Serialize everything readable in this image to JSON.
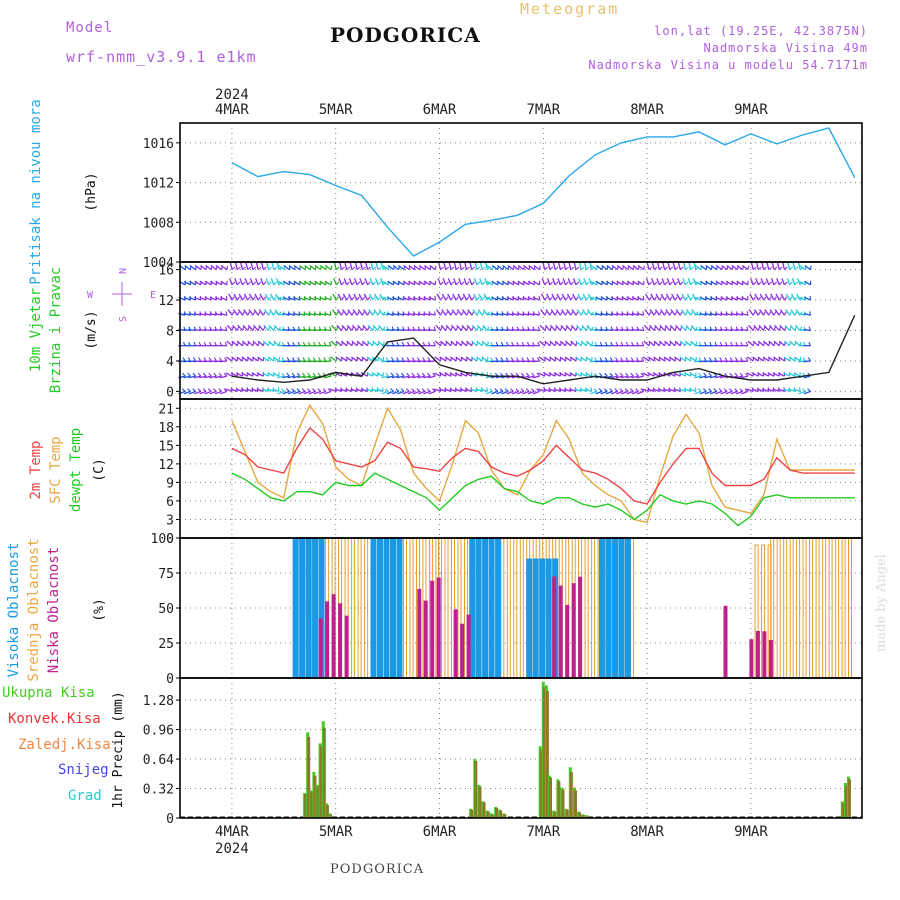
{
  "header": {
    "model_label": "Model",
    "model_name": "wrf-nmm_v3.9.1  e1km",
    "title": "PODGORICA",
    "subtitle": "Meteogram",
    "location": "lon,lat (19.25E, 42.3875N)",
    "altitude": "Nadmorska Visina 49m",
    "model_altitude": "Nadmorska Visina u modelu 54.7171m"
  },
  "footer": {
    "title": "PODGORICA",
    "credit": "made by Angel"
  },
  "colors": {
    "pressure": "#2aa8e8",
    "temp2m": "#ee4444",
    "sfc": "#e8a840",
    "dewpt": "#22cc22",
    "cloud_high": "#1a9ae6",
    "cloud_mid": "#e0a030",
    "cloud_low": "#c0208c",
    "precip_total": "#44cc22",
    "precip_conv": "#ee3333",
    "precip_frz": "#ee8844",
    "snow": "#4444ee",
    "grad": "#22cccc",
    "wind_speed": "#222222",
    "grid": "#888888"
  },
  "chart_data": [
    {
      "type": "line",
      "panel": "pressure",
      "ylabel_lines": [
        "Pritisak na nivou mora"
      ],
      "unit": "(hPa)",
      "yticks": [
        1004,
        1008,
        1012,
        1016
      ],
      "ylim": [
        1004,
        1018
      ],
      "top_axis": {
        "year": "2024",
        "days": [
          "4MAR",
          "5MAR",
          "6MAR",
          "7MAR",
          "8MAR",
          "9MAR"
        ]
      },
      "x_days": [
        0,
        0.25,
        0.5,
        0.75,
        1.0,
        1.25,
        1.5,
        1.75,
        2.0,
        2.25,
        2.5,
        2.75,
        3.0,
        3.25,
        3.5,
        3.75,
        4.0,
        4.25,
        4.5,
        4.75,
        5.0,
        5.25,
        5.5,
        5.75,
        6.0
      ],
      "series": [
        {
          "values": [
            1014.0,
            1012.6,
            1013.1,
            1012.8,
            1011.7,
            1010.7,
            1007.5,
            1004.6,
            1006.0,
            1007.8,
            1008.2,
            1008.7,
            1009.9,
            1012.7,
            1014.8,
            1016.0,
            1016.6,
            1016.6,
            1017.1,
            1015.8,
            1016.9,
            1015.9,
            1016.8,
            1017.5,
            1012.5
          ]
        }
      ],
      "grid": true
    },
    {
      "type": "line",
      "panel": "wind",
      "ylabel_lines": [
        "10m Vjetar",
        "Brzina i Pravac"
      ],
      "unit": "(m/s)",
      "yticks": [
        0,
        4,
        8,
        12,
        16
      ],
      "ylim": [
        -1,
        17
      ],
      "compass": {
        "n": "N",
        "s": "S",
        "e": "E",
        "w": "W"
      },
      "x_days": [
        0,
        0.25,
        0.5,
        0.75,
        1.0,
        1.25,
        1.5,
        1.75,
        2.0,
        2.25,
        2.5,
        2.75,
        3.0,
        3.25,
        3.5,
        3.75,
        4.0,
        4.25,
        4.5,
        4.75,
        5.0,
        5.25,
        5.5,
        5.75,
        6.0
      ],
      "series": [
        {
          "name": "speed",
          "values": [
            2.0,
            1.5,
            1.2,
            1.5,
            2.5,
            2.0,
            6.5,
            7.0,
            3.5,
            2.5,
            2.0,
            2.0,
            1.0,
            1.5,
            2.0,
            1.5,
            1.5,
            2.5,
            3.0,
            2.0,
            1.5,
            1.5,
            2.0,
            2.5,
            10.0
          ]
        }
      ],
      "barb_colors": [
        "#8a2be2",
        "#1e4fd8",
        "#22c8d8",
        "#22aa22",
        "#ee4444"
      ],
      "grid": true
    },
    {
      "type": "line",
      "panel": "temperature",
      "ylabel_lines": [
        "2m Temp",
        "SFC Temp",
        "dewpt Temp"
      ],
      "unit": "(C)",
      "yticks": [
        0,
        3,
        6,
        9,
        12,
        15,
        18,
        21
      ],
      "ylim": [
        0,
        22.5
      ],
      "x_days": [
        0,
        0.125,
        0.25,
        0.375,
        0.5,
        0.625,
        0.75,
        0.875,
        1.0,
        1.125,
        1.25,
        1.375,
        1.5,
        1.625,
        1.75,
        1.875,
        2.0,
        2.125,
        2.25,
        2.375,
        2.5,
        2.625,
        2.75,
        2.875,
        3.0,
        3.125,
        3.25,
        3.375,
        3.5,
        3.625,
        3.75,
        3.875,
        4.0,
        4.125,
        4.25,
        4.375,
        4.5,
        4.625,
        4.75,
        4.875,
        5.0,
        5.125,
        5.25,
        5.375,
        5.5,
        5.625,
        5.75,
        5.875,
        6.0
      ],
      "series": [
        {
          "name": "2m Temp",
          "values": [
            14.5,
            13.5,
            11.5,
            11.0,
            10.5,
            14.5,
            17.8,
            16.0,
            12.5,
            12.0,
            11.5,
            12.5,
            15.5,
            14.5,
            11.5,
            11.2,
            10.8,
            13.0,
            14.5,
            14.0,
            11.5,
            10.5,
            10.0,
            11.0,
            12.5,
            15.0,
            13.0,
            11.0,
            10.5,
            9.5,
            8.0,
            6.0,
            5.5,
            9.0,
            12.0,
            14.5,
            14.5,
            10.5,
            8.5,
            8.5,
            8.5,
            9.5,
            13.0,
            11.0,
            10.5,
            10.5,
            10.5,
            10.5,
            10.5
          ]
        },
        {
          "name": "SFC Temp",
          "values": [
            19.0,
            14.0,
            9.0,
            7.5,
            6.5,
            17.0,
            21.5,
            18.5,
            11.5,
            9.5,
            8.5,
            15.0,
            21.0,
            17.5,
            10.5,
            8.0,
            6.0,
            12.0,
            19.0,
            17.0,
            11.0,
            8.0,
            7.0,
            11.0,
            13.5,
            19.0,
            16.0,
            10.5,
            8.5,
            7.0,
            6.0,
            3.0,
            2.5,
            10.0,
            16.5,
            20.0,
            17.0,
            8.5,
            5.0,
            4.5,
            4.0,
            7.0,
            16.0,
            11.0,
            11.0,
            11.0,
            11.0,
            11.0,
            11.0
          ]
        },
        {
          "name": "dewpt Temp",
          "values": [
            10.5,
            9.5,
            8.0,
            6.5,
            6.0,
            7.5,
            7.5,
            7.0,
            9.0,
            8.5,
            8.5,
            10.5,
            9.5,
            8.5,
            7.5,
            6.5,
            4.5,
            6.5,
            8.5,
            9.5,
            10.0,
            8.0,
            7.5,
            6.0,
            5.5,
            6.5,
            6.5,
            5.5,
            5.0,
            5.5,
            4.5,
            3.0,
            4.5,
            7.0,
            6.0,
            5.5,
            6.0,
            5.5,
            4.0,
            2.0,
            3.5,
            6.5,
            7.0,
            6.5,
            6.5,
            6.5,
            6.5,
            6.5,
            6.5
          ]
        }
      ],
      "grid": true
    },
    {
      "type": "bar",
      "panel": "clouds",
      "ylabel_lines": [
        "Visoka Oblacnost",
        "Srednja Oblacnost",
        "Niska Oblacnost"
      ],
      "unit": "(%)",
      "yticks": [
        0,
        25,
        50,
        75,
        100
      ],
      "ylim": [
        0,
        100
      ],
      "bins_per_day": 16,
      "series": [
        {
          "name": "Visoka Oblacnost",
          "ranges": [
            [
              0.6,
              0.85,
              100
            ],
            [
              1.35,
              1.6,
              100
            ],
            [
              2.3,
              2.55,
              100
            ],
            [
              2.85,
              3.1,
              85
            ],
            [
              3.55,
              3.85,
              100
            ]
          ]
        },
        {
          "name": "Srednja Oblacnost",
          "ranges": [
            [
              0.6,
              2.0,
              100
            ],
            [
              2.0,
              2.6,
              100
            ],
            [
              2.6,
              3.9,
              100
            ],
            [
              5.05,
              5.2,
              95
            ],
            [
              5.2,
              6.0,
              100
            ]
          ]
        },
        {
          "name": "Niska Oblacnost",
          "ranges": [
            [
              0.85,
              1.15,
              70
            ],
            [
              1.8,
              2.0,
              85
            ],
            [
              2.15,
              2.3,
              60
            ],
            [
              3.1,
              3.35,
              85
            ],
            [
              4.75,
              4.8,
              80
            ],
            [
              5.0,
              5.2,
              40
            ]
          ]
        }
      ],
      "grid": true
    },
    {
      "type": "bar",
      "panel": "precip",
      "ylabel_lines": [
        "1hr Precip"
      ],
      "unit": "(mm)",
      "legend": [
        "Ukupna Kisa",
        "Konvek.Kisa",
        "Zaledj.Kisa",
        "Snijeg",
        "Grad"
      ],
      "yticks": [
        0,
        0.32,
        0.64,
        0.96,
        1.28
      ],
      "ylim": [
        0,
        1.52
      ],
      "bottom_axis": {
        "year": "2024",
        "days": [
          "4MAR",
          "5MAR",
          "6MAR",
          "7MAR",
          "8MAR",
          "9MAR"
        ]
      },
      "bar_x_days": [
        0.7,
        0.73,
        0.76,
        0.79,
        0.82,
        0.85,
        0.88,
        0.91,
        0.94,
        2.3,
        2.34,
        2.38,
        2.42,
        2.46,
        2.5,
        2.54,
        2.58,
        2.62,
        2.97,
        3.0,
        3.03,
        3.06,
        3.1,
        3.14,
        3.18,
        3.22,
        3.26,
        3.3,
        3.34,
        3.38,
        3.42,
        5.88,
        5.91,
        5.94
      ],
      "series": [
        {
          "name": "Ukupna Kisa",
          "values": [
            0.27,
            0.93,
            0.3,
            0.5,
            0.36,
            0.81,
            1.05,
            0.16,
            0.05,
            0.1,
            0.64,
            0.36,
            0.18,
            0.08,
            0.05,
            0.12,
            0.09,
            0.05,
            0.78,
            1.48,
            1.44,
            0.46,
            0.08,
            0.42,
            0.33,
            0.1,
            0.55,
            0.33,
            0.07,
            0.04,
            0.03,
            0.18,
            0.38,
            0.45
          ]
        },
        {
          "name": "Konvek.Kisa",
          "values": [
            0.26,
            0.88,
            0.28,
            0.46,
            0.34,
            0.78,
            0.98,
            0.14,
            0.04,
            0.09,
            0.62,
            0.34,
            0.17,
            0.07,
            0.04,
            0.11,
            0.08,
            0.04,
            0.74,
            1.42,
            1.38,
            0.44,
            0.07,
            0.4,
            0.31,
            0.09,
            0.5,
            0.3,
            0.06,
            0.03,
            0.02,
            0.16,
            0.35,
            0.42
          ]
        }
      ],
      "grid": true
    }
  ]
}
